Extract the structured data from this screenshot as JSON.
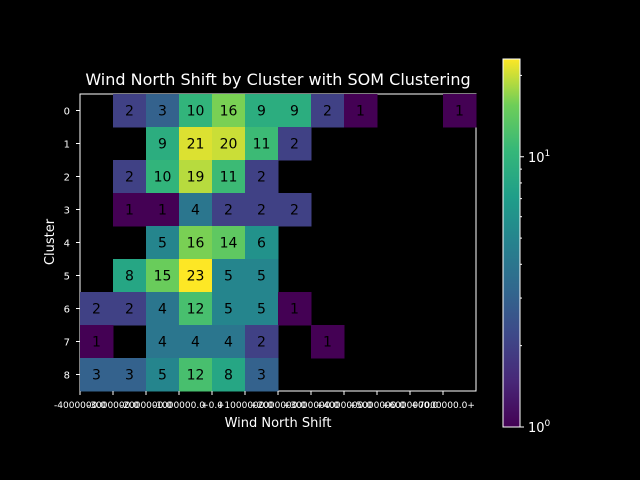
{
  "chart_data": {
    "type": "heatmap",
    "title": "Wind North Shift by Cluster with SOM Clustering",
    "xlabel": "Wind North Shift",
    "ylabel": "Cluster",
    "xticklabels": [
      "-4000000.0",
      "-3000000.0",
      "-2000000.0",
      "-1000000.0",
      "+0.0",
      "+1000000.0",
      "+2000000.0",
      "+3000000.0",
      "+4000000.0",
      "+5000000.0",
      "+6000000.0",
      "+7000000.0+"
    ],
    "yticklabels": [
      "0",
      "1",
      "2",
      "3",
      "4",
      "5",
      "6",
      "7",
      "8"
    ],
    "colorbar": {
      "scale": "log",
      "min": 1,
      "max": 23,
      "ticks": [
        {
          "base": "10",
          "exp": "0"
        },
        {
          "base": "10",
          "exp": "1"
        }
      ]
    },
    "colormap": "viridis",
    "background": "#000000",
    "values": [
      [
        null,
        2,
        3,
        10,
        16,
        9,
        9,
        2,
        1,
        null,
        null,
        1
      ],
      [
        null,
        null,
        9,
        21,
        20,
        11,
        2,
        null,
        null,
        null,
        null,
        null
      ],
      [
        null,
        2,
        10,
        19,
        11,
        2,
        null,
        null,
        null,
        null,
        null,
        null
      ],
      [
        null,
        1,
        1,
        4,
        2,
        2,
        2,
        null,
        null,
        null,
        null,
        null
      ],
      [
        null,
        null,
        5,
        16,
        14,
        6,
        null,
        null,
        null,
        null,
        null,
        null
      ],
      [
        null,
        8,
        15,
        23,
        5,
        5,
        null,
        null,
        null,
        null,
        null,
        null
      ],
      [
        2,
        2,
        4,
        12,
        5,
        5,
        1,
        null,
        null,
        null,
        null,
        null
      ],
      [
        1,
        null,
        4,
        4,
        4,
        2,
        null,
        1,
        null,
        null,
        null,
        null
      ],
      [
        3,
        3,
        5,
        12,
        8,
        3,
        null,
        null,
        null,
        null,
        null,
        null
      ]
    ]
  }
}
